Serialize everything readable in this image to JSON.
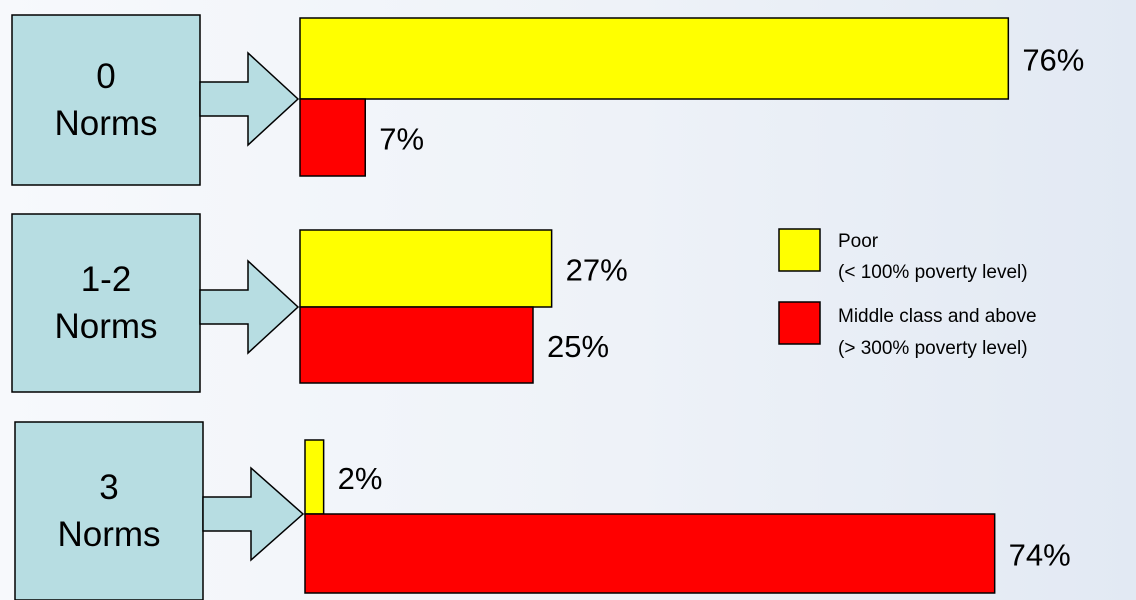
{
  "chart_data": {
    "type": "bar",
    "orientation": "horizontal",
    "categories": [
      {
        "number": "0",
        "word": "Norms"
      },
      {
        "number": "1-2",
        "word": "Norms"
      },
      {
        "number": "3",
        "word": "Norms"
      }
    ],
    "series": [
      {
        "name": "Poor",
        "name_detail": "(< 100% poverty level)",
        "color": "#ffff00",
        "values": [
          76,
          27,
          2
        ],
        "labels": [
          "76%",
          "27%",
          "2%"
        ]
      },
      {
        "name": "Middle class and above",
        "name_detail": "(> 300% poverty level)",
        "color": "#ff0000",
        "values": [
          7,
          25,
          74
        ],
        "labels": [
          "7%",
          "25%",
          "74%"
        ]
      }
    ],
    "unit": "%",
    "xlim": [
      0,
      100
    ],
    "grid": false,
    "legend_position": "right",
    "category_box_color": "#b7dde2"
  }
}
